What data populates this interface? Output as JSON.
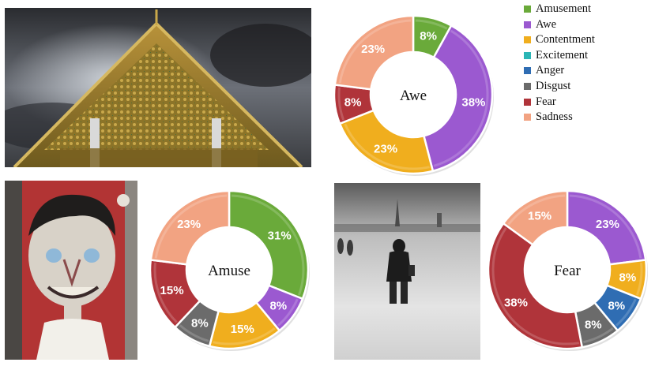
{
  "legend": {
    "items": [
      {
        "label": "Amusement",
        "color": "#6aaa3a"
      },
      {
        "label": "Awe",
        "color": "#9b59d0"
      },
      {
        "label": "Contentment",
        "color": "#f0ae1e"
      },
      {
        "label": "Excitement",
        "color": "#2bb5b5"
      },
      {
        "label": "Anger",
        "color": "#2f6db3"
      },
      {
        "label": "Disgust",
        "color": "#6b6b6b"
      },
      {
        "label": "Fear",
        "color": "#b0343a"
      },
      {
        "label": "Sadness",
        "color": "#f2a382"
      }
    ]
  },
  "photos": [
    {
      "icon": "temple-roof-photo"
    },
    {
      "icon": "street-art-face-photo"
    },
    {
      "icon": "foggy-figure-photo"
    }
  ],
  "chart_data": [
    {
      "type": "pie",
      "center_label": "Awe",
      "slices": [
        {
          "category": "Amusement",
          "value": 8,
          "label": "8%",
          "color": "#6aaa3a"
        },
        {
          "category": "Awe",
          "value": 38,
          "label": "38%",
          "color": "#9b59d0"
        },
        {
          "category": "Contentment",
          "value": 23,
          "label": "23%",
          "color": "#f0ae1e"
        },
        {
          "category": "Fear",
          "value": 8,
          "label": "8%",
          "color": "#b0343a"
        },
        {
          "category": "Sadness",
          "value": 23,
          "label": "23%",
          "color": "#f2a382"
        }
      ]
    },
    {
      "type": "pie",
      "center_label": "Amuse",
      "slices": [
        {
          "category": "Amusement",
          "value": 31,
          "label": "31%",
          "color": "#6aaa3a"
        },
        {
          "category": "Awe",
          "value": 8,
          "label": "8%",
          "color": "#9b59d0"
        },
        {
          "category": "Contentment",
          "value": 15,
          "label": "15%",
          "color": "#f0ae1e"
        },
        {
          "category": "Disgust",
          "value": 8,
          "label": "8%",
          "color": "#6b6b6b"
        },
        {
          "category": "Fear",
          "value": 15,
          "label": "15%",
          "color": "#b0343a"
        },
        {
          "category": "Sadness",
          "value": 23,
          "label": "23%",
          "color": "#f2a382"
        }
      ]
    },
    {
      "type": "pie",
      "center_label": "Fear",
      "slices": [
        {
          "category": "Awe",
          "value": 23,
          "label": "23%",
          "color": "#9b59d0"
        },
        {
          "category": "Contentment",
          "value": 8,
          "label": "8%",
          "color": "#f0ae1e"
        },
        {
          "category": "Anger",
          "value": 8,
          "label": "8%",
          "color": "#2f6db3"
        },
        {
          "category": "Disgust",
          "value": 8,
          "label": "8%",
          "color": "#6b6b6b"
        },
        {
          "category": "Fear",
          "value": 38,
          "label": "38%",
          "color": "#b0343a"
        },
        {
          "category": "Sadness",
          "value": 15,
          "label": "15%",
          "color": "#f2a382"
        }
      ]
    }
  ]
}
